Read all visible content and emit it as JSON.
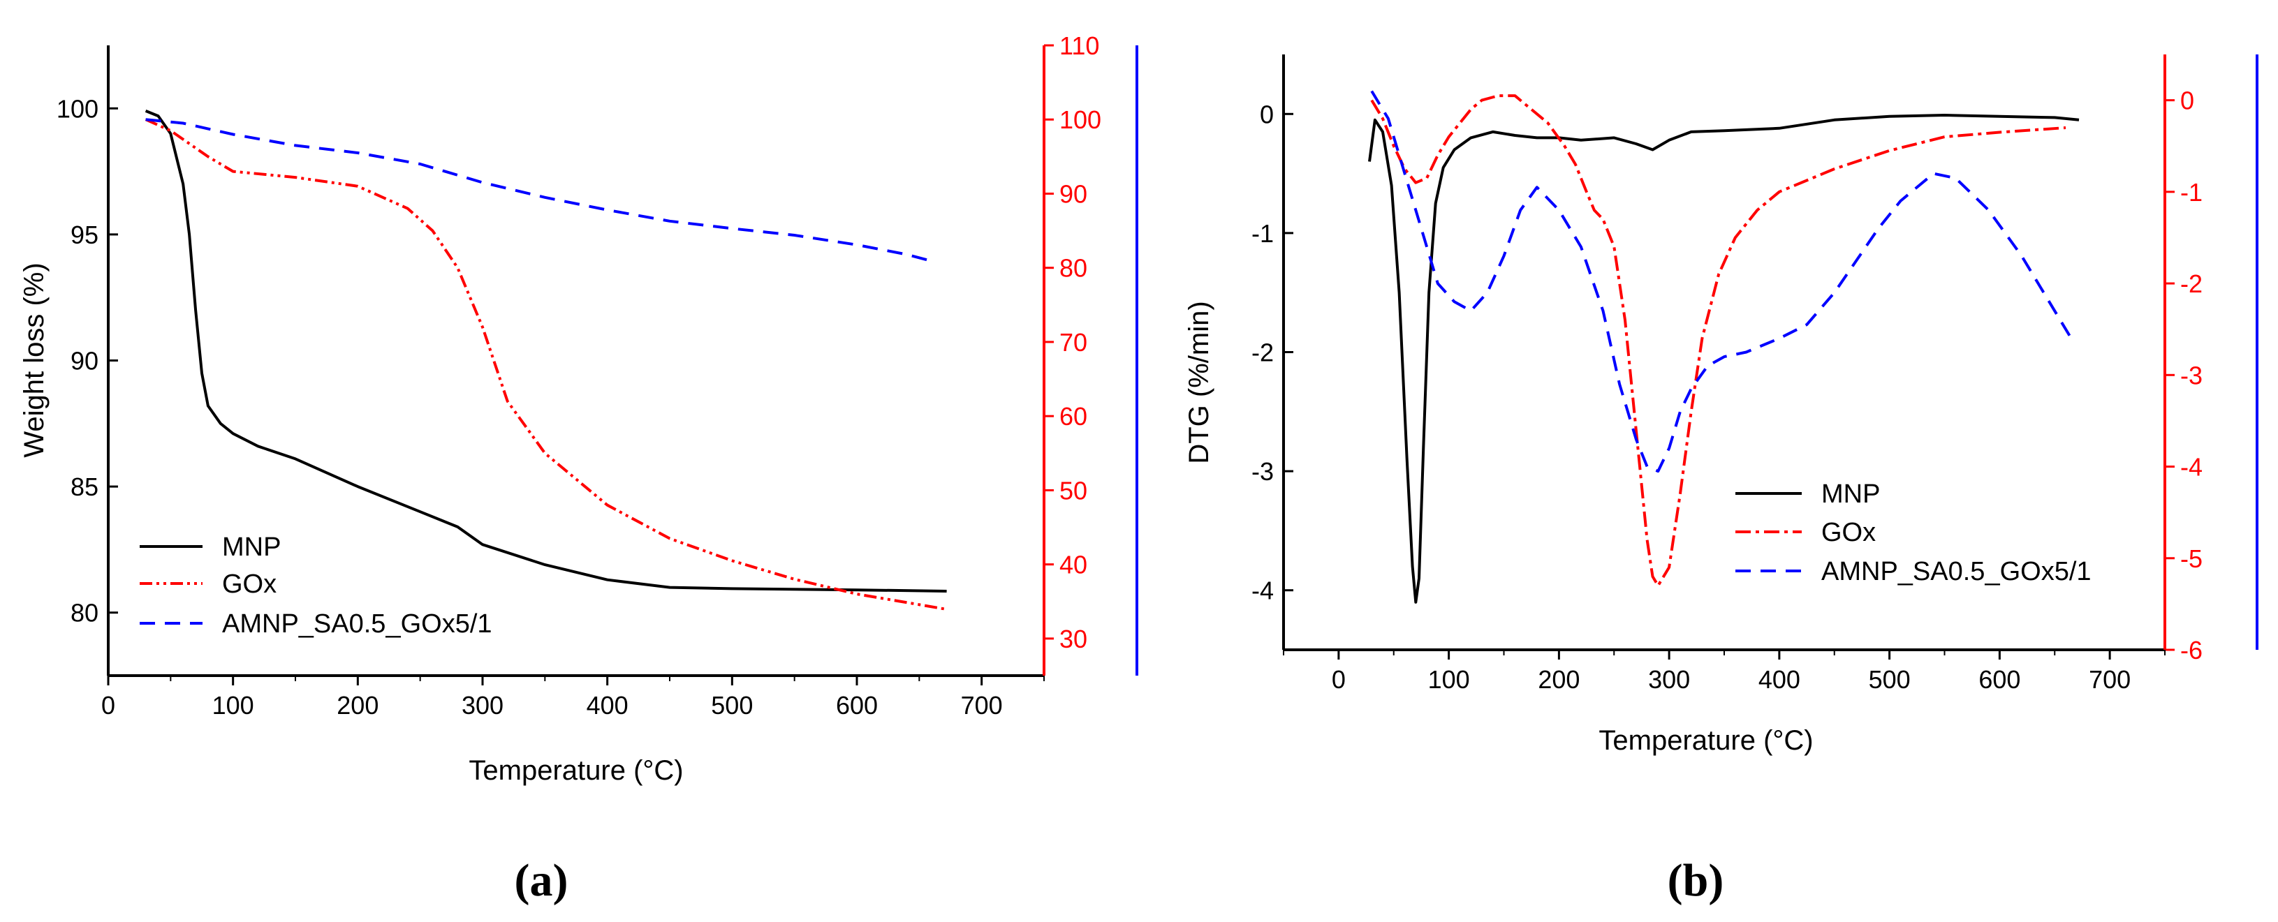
{
  "chart_data": [
    {
      "panel": "a",
      "caption": "(a)",
      "type": "line",
      "xlabel": "Temperature (°C)",
      "ylabel": "Weight loss (%)",
      "xlim": [
        0,
        750
      ],
      "ylim": [
        77.5,
        102.5
      ],
      "y2lim": [
        25,
        110
      ],
      "y3_axis_color": "#0000ff",
      "x_ticks": [
        0,
        100,
        200,
        300,
        400,
        500,
        600,
        700
      ],
      "y_ticks": [
        80,
        85,
        90,
        95,
        100
      ],
      "y2_ticks": [
        30,
        40,
        50,
        60,
        70,
        80,
        90,
        100,
        110
      ],
      "legend": [
        "MNP",
        "GOx",
        "AMNP_SA0.5_GOx5/1"
      ],
      "legend_position": "bottom-left",
      "series": [
        {
          "name": "MNP",
          "axis": "left",
          "color": "#000000",
          "dash": "solid",
          "x": [
            30,
            40,
            50,
            60,
            65,
            70,
            75,
            80,
            90,
            100,
            120,
            150,
            200,
            250,
            280,
            300,
            350,
            400,
            450,
            500,
            600,
            672
          ],
          "y": [
            99.9,
            99.7,
            99.0,
            97.0,
            95.0,
            92.0,
            89.5,
            88.2,
            87.5,
            87.1,
            86.6,
            86.1,
            85.0,
            84.0,
            83.4,
            82.7,
            81.9,
            81.3,
            81.0,
            80.95,
            80.9,
            80.85
          ]
        },
        {
          "name": "GOx",
          "axis": "right",
          "color": "#ff0000",
          "dash": "dashdotdot",
          "x": [
            30,
            50,
            80,
            100,
            150,
            200,
            240,
            260,
            280,
            300,
            320,
            350,
            400,
            450,
            500,
            550,
            600,
            670
          ],
          "y": [
            100,
            98.5,
            95,
            93,
            92.2,
            91,
            88,
            85,
            80,
            72,
            62,
            55,
            48,
            43.5,
            40.5,
            38,
            36,
            34
          ]
        },
        {
          "name": "AMNP_SA0.5_GOx5/1",
          "axis": "third",
          "color": "#0000ff",
          "dash": "dashed",
          "x": [
            30,
            60,
            100,
            150,
            200,
            250,
            300,
            350,
            400,
            450,
            500,
            550,
            600,
            640,
            660
          ],
          "y": [
            100,
            99.5,
            98,
            96.5,
            95.5,
            94,
            91.5,
            89.5,
            87.8,
            86.3,
            85.3,
            84.4,
            83.1,
            81.8,
            80.9
          ]
        }
      ]
    },
    {
      "panel": "b",
      "caption": "(b)",
      "type": "line",
      "xlabel": "Temperature (°C)",
      "ylabel": "DTG (%/min)",
      "xlim": [
        -50,
        750
      ],
      "ylim": [
        -4.5,
        0.5
      ],
      "y2lim": [
        -6,
        0.5
      ],
      "y3_axis_color": "#0000ff",
      "x_ticks": [
        0,
        100,
        200,
        300,
        400,
        500,
        600,
        700
      ],
      "y_ticks": [
        -4,
        -3,
        -2,
        -1,
        0
      ],
      "y2_ticks": [
        -6,
        -5,
        -4,
        -3,
        -2,
        -1,
        0
      ],
      "legend": [
        "MNP",
        "GOx",
        "AMNP_SA0.5_GOx5/1"
      ],
      "legend_position": "bottom-right",
      "series": [
        {
          "name": "MNP",
          "axis": "left",
          "color": "#000000",
          "dash": "solid",
          "x": [
            28,
            33,
            40,
            48,
            55,
            62,
            67,
            70,
            73,
            77,
            82,
            88,
            95,
            105,
            120,
            140,
            160,
            180,
            200,
            220,
            250,
            270,
            285,
            300,
            320,
            350,
            400,
            450,
            500,
            550,
            600,
            650,
            672
          ],
          "y": [
            -0.4,
            -0.05,
            -0.15,
            -0.6,
            -1.5,
            -2.9,
            -3.8,
            -4.1,
            -3.9,
            -2.8,
            -1.5,
            -0.75,
            -0.45,
            -0.3,
            -0.2,
            -0.15,
            -0.18,
            -0.2,
            -0.2,
            -0.22,
            -0.2,
            -0.25,
            -0.3,
            -0.22,
            -0.15,
            -0.14,
            -0.12,
            -0.05,
            -0.02,
            -0.01,
            -0.02,
            -0.03,
            -0.05
          ]
        },
        {
          "name": "GOx",
          "axis": "right",
          "color": "#ff0000",
          "dash": "dashdot",
          "x": [
            30,
            40,
            50,
            60,
            70,
            80,
            90,
            100,
            110,
            120,
            130,
            145,
            160,
            175,
            190,
            205,
            215,
            225,
            232,
            240,
            250,
            260,
            270,
            280,
            285,
            290,
            300,
            310,
            320,
            330,
            345,
            360,
            380,
            400,
            450,
            500,
            550,
            600,
            660
          ],
          "y": [
            0.0,
            -0.2,
            -0.5,
            -0.75,
            -0.9,
            -0.85,
            -0.6,
            -0.4,
            -0.25,
            -0.1,
            0.0,
            0.05,
            0.05,
            -0.1,
            -0.25,
            -0.5,
            -0.7,
            -1.0,
            -1.2,
            -1.3,
            -1.6,
            -2.4,
            -3.6,
            -4.8,
            -5.2,
            -5.3,
            -5.1,
            -4.3,
            -3.4,
            -2.6,
            -1.9,
            -1.5,
            -1.2,
            -1.0,
            -0.75,
            -0.55,
            -0.4,
            -0.35,
            -0.3
          ]
        },
        {
          "name": "AMNP_SA0.5_GOx5/1",
          "axis": "third",
          "color": "#0000ff",
          "dash": "dashed",
          "x": [
            30,
            45,
            60,
            75,
            90,
            105,
            120,
            135,
            150,
            165,
            180,
            200,
            220,
            240,
            255,
            270,
            280,
            290,
            300,
            310,
            320,
            335,
            350,
            370,
            400,
            425,
            450,
            470,
            490,
            510,
            540,
            560,
            590,
            620,
            665
          ],
          "y": [
            0.1,
            -0.2,
            -0.8,
            -1.4,
            -2.0,
            -2.2,
            -2.3,
            -2.1,
            -1.7,
            -1.2,
            -0.95,
            -1.2,
            -1.6,
            -2.3,
            -3.1,
            -3.7,
            -4.0,
            -4.05,
            -3.8,
            -3.4,
            -3.15,
            -2.9,
            -2.8,
            -2.75,
            -2.6,
            -2.45,
            -2.1,
            -1.75,
            -1.4,
            -1.1,
            -0.8,
            -0.85,
            -1.2,
            -1.7,
            -2.6
          ]
        }
      ]
    }
  ]
}
